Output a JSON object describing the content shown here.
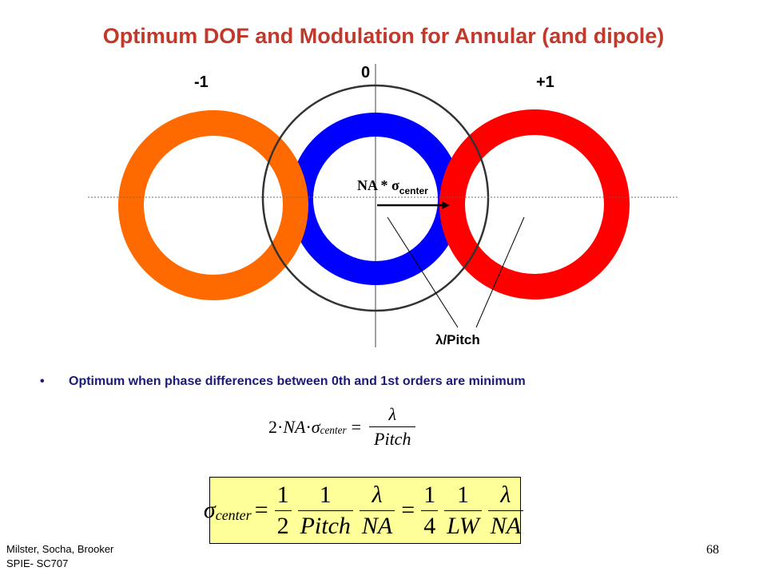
{
  "slide": {
    "title": "Optimum DOF and Modulation for Annular (and dipole)",
    "page_number": "68"
  },
  "diagram": {
    "order_minus": "-1",
    "order_zero": "0",
    "order_plus": "+1",
    "na_text": "NA * σ",
    "na_sub": "center",
    "pitch_label": "λ/Pitch",
    "colors": {
      "minus_ring": "#ff6a00",
      "zero_ring": "#0000ff",
      "plus_ring": "#ff0000"
    }
  },
  "bullet": {
    "text": "Optimum when phase differences between 0th and 1st orders are minimum"
  },
  "equation1": {
    "lhs_coef": "2·",
    "lhs_na": "NA",
    "dot": "·",
    "sigma": "σ",
    "sigma_sub": "center",
    "equals": "=",
    "num": "λ",
    "den": "Pitch"
  },
  "equation2": {
    "sigma": "σ",
    "sigma_sub": "center",
    "equals": "=",
    "f1_num": "1",
    "f1_den": "2",
    "f2_num": "1",
    "f2_den": "Pitch",
    "f3_num": "λ",
    "f3_den": "NA",
    "equals2": "=",
    "f4_num": "1",
    "f4_den": "4",
    "f5_num": "1",
    "f5_den": "LW",
    "f6_num": "λ",
    "f6_den": "NA"
  },
  "footer": {
    "line1": "Milster, Socha, Brooker",
    "line2": "SPIE- SC707"
  }
}
